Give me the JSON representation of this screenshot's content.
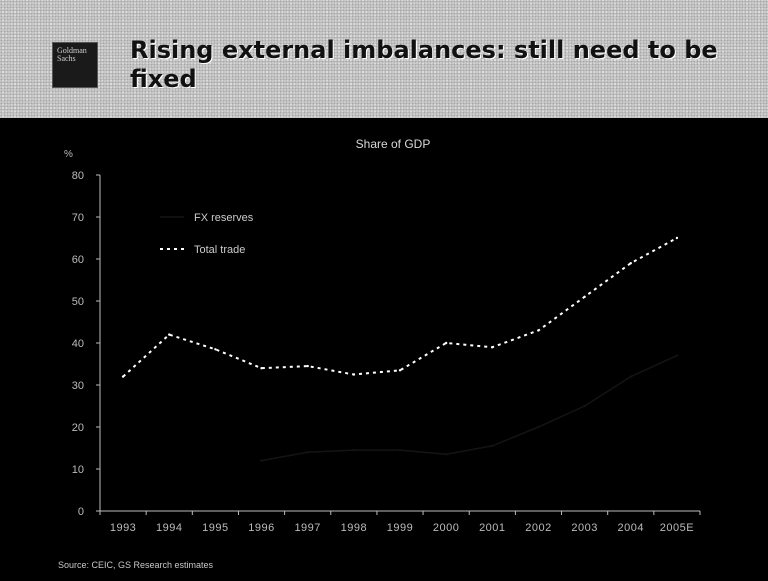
{
  "slide": {
    "title": "Rising external imbalances: still need to be fixed",
    "logo_text": [
      "Goldman",
      "Sachs"
    ],
    "source": "Source: CEIC, GS Research estimates"
  },
  "chart_data": {
    "type": "line",
    "title": "Share of GDP",
    "ylabel": "%",
    "xlabel": "",
    "ylim": [
      0,
      80
    ],
    "yticks": [
      0,
      10,
      20,
      30,
      40,
      50,
      60,
      70,
      80
    ],
    "categories": [
      "1993",
      "1994",
      "1995",
      "1996",
      "1997",
      "1998",
      "1999",
      "2000",
      "2001",
      "2002",
      "2003",
      "2004",
      "2005E"
    ],
    "series": [
      {
        "name": "FX reserves",
        "color": "#141414",
        "style": "solid",
        "values": [
          null,
          null,
          null,
          12,
          14,
          14.5,
          14.5,
          13.5,
          15.5,
          20,
          25,
          32,
          37
        ]
      },
      {
        "name": "Total trade",
        "color": "#ffffff",
        "style": "dashed",
        "values": [
          32,
          42,
          38.5,
          34,
          34.5,
          32.5,
          33.5,
          40,
          39,
          43,
          51,
          59,
          65
        ]
      }
    ],
    "legend": "top-left",
    "grid": false
  }
}
